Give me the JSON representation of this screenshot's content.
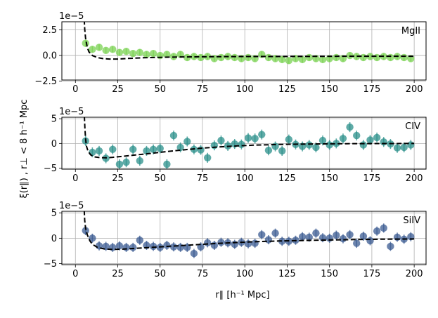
{
  "figure": {
    "ylabel": "ξ(r∥) , r⊥ < 8 h⁻¹ Mpc",
    "xlabel": "r∥ [h⁻¹ Mpc]"
  },
  "chart_data": [
    {
      "type": "scatter",
      "name": "MgII",
      "label": "MgII",
      "offset_label": "1e−5",
      "color": "#7ad151",
      "xlim": [
        -8,
        207
      ],
      "ylim": [
        -2.4,
        3.3
      ],
      "xticks": [
        0,
        25,
        50,
        75,
        100,
        125,
        150,
        175,
        200
      ],
      "yticks": [
        2.5,
        0.0,
        -2.5
      ],
      "ytick_labels": [
        "2.5",
        "0.0",
        "−2.5"
      ],
      "show_xtick_labels": true,
      "x": [
        6,
        10,
        14,
        18,
        22,
        26,
        30,
        34,
        38,
        42,
        46,
        50,
        54,
        58,
        62,
        66,
        70,
        74,
        78,
        82,
        86,
        90,
        94,
        98,
        102,
        106,
        110,
        114,
        118,
        122,
        126,
        130,
        134,
        138,
        142,
        146,
        150,
        154,
        158,
        162,
        166,
        170,
        174,
        178,
        182,
        186,
        190,
        194,
        198
      ],
      "y": [
        1.2,
        0.6,
        0.8,
        0.5,
        0.6,
        0.3,
        0.4,
        0.2,
        0.3,
        0.1,
        0.2,
        0.0,
        0.1,
        -0.1,
        0.1,
        -0.2,
        -0.1,
        -0.2,
        -0.1,
        -0.3,
        -0.2,
        -0.1,
        -0.2,
        -0.3,
        -0.2,
        -0.3,
        0.1,
        -0.2,
        -0.3,
        -0.4,
        -0.5,
        -0.3,
        -0.4,
        -0.2,
        -0.3,
        -0.4,
        -0.3,
        -0.2,
        -0.3,
        0.0,
        -0.1,
        -0.2,
        -0.1,
        -0.2,
        -0.1,
        -0.2,
        -0.1,
        -0.2,
        -0.3
      ],
      "yerr": [
        0.35,
        0.3,
        0.3,
        0.3,
        0.3,
        0.3,
        0.3,
        0.3,
        0.3,
        0.3,
        0.3,
        0.3,
        0.3,
        0.3,
        0.3,
        0.3,
        0.3,
        0.3,
        0.3,
        0.3,
        0.3,
        0.3,
        0.3,
        0.3,
        0.3,
        0.3,
        0.3,
        0.3,
        0.3,
        0.3,
        0.3,
        0.3,
        0.3,
        0.3,
        0.3,
        0.3,
        0.3,
        0.3,
        0.3,
        0.3,
        0.3,
        0.3,
        0.3,
        0.3,
        0.3,
        0.3,
        0.3,
        0.3,
        0.3
      ],
      "model_x": [
        5.2,
        5.5,
        6,
        7,
        8,
        10,
        13,
        16,
        20,
        25,
        30,
        40,
        50,
        60,
        80,
        100,
        120,
        150,
        180,
        200
      ],
      "model_y": [
        3.5,
        2.6,
        1.7,
        0.8,
        0.35,
        0.0,
        -0.2,
        -0.3,
        -0.35,
        -0.35,
        -0.3,
        -0.22,
        -0.18,
        -0.15,
        -0.12,
        -0.1,
        -0.1,
        -0.08,
        -0.07,
        -0.07
      ]
    },
    {
      "type": "scatter",
      "name": "CIV",
      "label": "CIV",
      "offset_label": "1e−5",
      "color": "#2a8f8a",
      "xlim": [
        -8,
        207
      ],
      "ylim": [
        -5.2,
        5.3
      ],
      "xticks": [
        0,
        25,
        50,
        75,
        100,
        125,
        150,
        175,
        200
      ],
      "yticks": [
        5,
        0,
        -5
      ],
      "ytick_labels": [
        "5",
        "0",
        "−5"
      ],
      "show_xtick_labels": true,
      "x": [
        6,
        10,
        14,
        18,
        22,
        26,
        30,
        34,
        38,
        42,
        46,
        50,
        54,
        58,
        62,
        66,
        70,
        74,
        78,
        82,
        86,
        90,
        94,
        98,
        102,
        106,
        110,
        114,
        118,
        122,
        126,
        130,
        134,
        138,
        142,
        146,
        150,
        154,
        158,
        162,
        166,
        170,
        174,
        178,
        182,
        186,
        190,
        194,
        198
      ],
      "y": [
        0.5,
        -1.8,
        -1.5,
        -3.0,
        -1.2,
        -4.2,
        -3.8,
        -1.2,
        -3.5,
        -1.5,
        -1.2,
        -1.0,
        -4.2,
        1.6,
        -0.8,
        0.4,
        -1.2,
        -1.3,
        -2.9,
        -0.4,
        0.6,
        -0.5,
        -0.1,
        -0.2,
        1.1,
        1.0,
        1.8,
        -1.4,
        -0.6,
        -1.5,
        0.8,
        -0.2,
        -0.6,
        -0.3,
        -0.8,
        0.6,
        -0.3,
        0.0,
        1.0,
        3.3,
        1.6,
        -0.3,
        0.7,
        1.2,
        0.3,
        -0.1,
        -0.9,
        -0.8,
        -0.3
      ],
      "yerr": [
        1.0,
        1.0,
        1.0,
        1.0,
        1.0,
        1.0,
        1.0,
        1.0,
        1.0,
        1.0,
        1.0,
        1.0,
        1.0,
        1.0,
        1.0,
        1.0,
        1.0,
        1.0,
        1.0,
        1.0,
        1.0,
        1.0,
        1.0,
        1.0,
        1.0,
        1.0,
        1.0,
        1.0,
        1.0,
        1.0,
        1.0,
        1.0,
        1.0,
        1.0,
        1.0,
        1.0,
        1.0,
        1.0,
        1.0,
        1.0,
        1.0,
        1.0,
        1.0,
        1.0,
        1.0,
        1.0,
        1.0,
        1.0,
        1.0
      ],
      "model_x": [
        5.3,
        5.6,
        6,
        6.5,
        7.5,
        9,
        11,
        14,
        18,
        22,
        28,
        35,
        45,
        55,
        65,
        75,
        85,
        95,
        105,
        120,
        140,
        160,
        180,
        200
      ],
      "model_y": [
        5.5,
        3.0,
        1.0,
        -0.5,
        -1.6,
        -2.3,
        -2.7,
        -2.85,
        -2.9,
        -2.8,
        -2.6,
        -2.35,
        -2.0,
        -1.6,
        -1.25,
        -0.95,
        -0.7,
        -0.5,
        -0.35,
        -0.2,
        -0.1,
        -0.05,
        -0.02,
        0.0
      ]
    },
    {
      "type": "scatter",
      "name": "SiIV",
      "label": "SiIV",
      "offset_label": "1e−5",
      "color": "#3b5b92",
      "xlim": [
        -8,
        207
      ],
      "ylim": [
        -5.2,
        5.3
      ],
      "xticks": [
        0,
        25,
        50,
        75,
        100,
        125,
        150,
        175,
        200
      ],
      "yticks": [
        5,
        0,
        -5
      ],
      "ytick_labels": [
        "5",
        "0",
        "−5"
      ],
      "show_xtick_labels": true,
      "x": [
        6,
        10,
        14,
        18,
        22,
        26,
        30,
        34,
        38,
        42,
        46,
        50,
        54,
        58,
        62,
        66,
        70,
        74,
        78,
        82,
        86,
        90,
        94,
        98,
        102,
        106,
        110,
        114,
        118,
        122,
        126,
        130,
        134,
        138,
        142,
        146,
        150,
        154,
        158,
        162,
        166,
        170,
        174,
        178,
        182,
        186,
        190,
        194,
        198
      ],
      "y": [
        1.5,
        0.0,
        -1.5,
        -1.6,
        -1.8,
        -1.5,
        -1.8,
        -1.8,
        -0.4,
        -1.4,
        -1.6,
        -1.8,
        -1.4,
        -1.7,
        -1.8,
        -1.8,
        -3.0,
        -1.7,
        -0.9,
        -1.4,
        -0.8,
        -0.9,
        -1.2,
        -0.8,
        -1.1,
        -1.0,
        0.7,
        -0.3,
        1.0,
        -0.6,
        -0.6,
        -0.4,
        0.3,
        0.2,
        1.0,
        0.1,
        0.0,
        0.6,
        -0.1,
        0.7,
        -1.0,
        0.4,
        -0.5,
        1.4,
        2.0,
        -1.6,
        0.2,
        -0.2,
        0.3
      ],
      "yerr": [
        0.9,
        0.9,
        0.9,
        0.9,
        0.9,
        0.9,
        0.9,
        0.9,
        0.9,
        0.9,
        0.9,
        0.9,
        0.9,
        0.9,
        0.9,
        0.9,
        0.9,
        0.9,
        0.9,
        0.9,
        0.9,
        0.9,
        0.9,
        0.9,
        0.9,
        0.9,
        0.9,
        0.9,
        0.9,
        0.9,
        0.9,
        0.9,
        0.9,
        0.9,
        0.9,
        0.9,
        0.9,
        0.9,
        0.9,
        0.9,
        0.9,
        0.9,
        0.9,
        0.9,
        0.9,
        0.9,
        0.9,
        0.9,
        0.9
      ],
      "model_x": [
        5.2,
        5.5,
        6,
        7,
        8.5,
        10,
        13,
        17,
        22,
        28,
        35,
        45,
        55,
        65,
        75,
        85,
        95,
        105,
        120,
        140,
        160,
        180,
        200
      ],
      "model_y": [
        5.5,
        3.5,
        2.0,
        0.7,
        -0.5,
        -1.2,
        -1.8,
        -2.1,
        -2.2,
        -2.15,
        -2.0,
        -1.8,
        -1.6,
        -1.4,
        -1.2,
        -1.0,
        -0.85,
        -0.7,
        -0.55,
        -0.4,
        -0.3,
        -0.2,
        -0.15
      ]
    }
  ]
}
